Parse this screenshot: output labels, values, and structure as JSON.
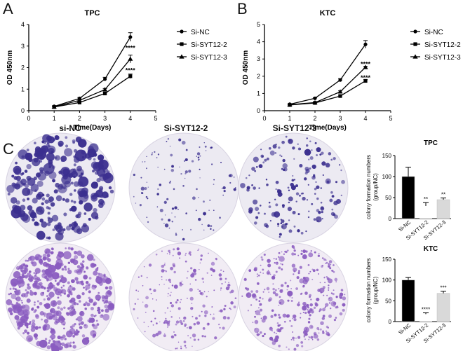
{
  "panels": {
    "a": "A",
    "b": "B",
    "c": "C"
  },
  "plates": {
    "columns": [
      "si-NC",
      "Si-SYT12-2",
      "Si-SYT12-3"
    ],
    "rows": [
      "TPC",
      "KTC"
    ]
  },
  "colors": {
    "plate_stain_row1": "#3b2f8f",
    "plate_stain_row2": "#8a5cc0",
    "bar_nc": "#000000",
    "bar_syt12_2": "#ffffff",
    "bar_syt12_3": "#d9d9d9"
  },
  "chart_data": [
    {
      "type": "line",
      "title": "TPC",
      "xlabel": "Time(Days)",
      "ylabel": "OD 450nm",
      "xlim": [
        0,
        5
      ],
      "ylim": [
        0,
        4
      ],
      "xticks": [
        "0",
        "1",
        "2",
        "3",
        "4",
        "5"
      ],
      "yticks": [
        "0",
        "1",
        "2",
        "3",
        "4"
      ],
      "x": [
        1,
        2,
        3,
        4
      ],
      "legend": "right",
      "series": [
        {
          "name": "Si-NC",
          "marker": "circle",
          "values": [
            0.2,
            0.57,
            1.47,
            3.42
          ],
          "err": [
            0.03,
            0.04,
            0.08,
            0.2
          ]
        },
        {
          "name": "Si-SYT12-2",
          "marker": "square",
          "values": [
            0.17,
            0.38,
            0.8,
            1.6
          ],
          "err": [
            0.02,
            0.03,
            0.05,
            0.1
          ]
        },
        {
          "name": "Si-SYT12-3",
          "marker": "triangle",
          "values": [
            0.18,
            0.48,
            0.98,
            2.4
          ],
          "err": [
            0.02,
            0.03,
            0.05,
            0.18
          ]
        }
      ],
      "annotations": [
        {
          "text": "****",
          "x": 4,
          "y": 2.95
        },
        {
          "text": "****",
          "x": 4,
          "y": 1.9
        }
      ]
    },
    {
      "type": "line",
      "title": "KTC",
      "xlabel": "Time(Days)",
      "ylabel": "OD 450nm",
      "xlim": [
        0,
        5
      ],
      "ylim": [
        0,
        5
      ],
      "xticks": [
        "0",
        "1",
        "2",
        "3",
        "4",
        "5"
      ],
      "yticks": [
        "0",
        "1",
        "2",
        "3",
        "4",
        "5"
      ],
      "x": [
        1,
        2,
        3,
        4
      ],
      "legend": "right",
      "series": [
        {
          "name": "Si-NC",
          "marker": "circle",
          "values": [
            0.37,
            0.72,
            1.78,
            3.85
          ],
          "err": [
            0.03,
            0.04,
            0.08,
            0.22
          ]
        },
        {
          "name": "Si-SYT12-2",
          "marker": "square",
          "values": [
            0.33,
            0.45,
            0.85,
            1.73
          ],
          "err": [
            0.02,
            0.03,
            0.05,
            0.07
          ]
        },
        {
          "name": "Si-SYT12-3",
          "marker": "triangle",
          "values": [
            0.35,
            0.47,
            1.1,
            2.52
          ],
          "err": [
            0.02,
            0.03,
            0.05,
            0.06
          ]
        }
      ],
      "annotations": [
        {
          "text": "****",
          "x": 4,
          "y": 2.75
        },
        {
          "text": "****",
          "x": 4,
          "y": 1.95
        }
      ]
    },
    {
      "type": "bar",
      "title": "TPC",
      "ylabel": "colony formation numbers (group/NC)",
      "ylim": [
        0,
        150
      ],
      "yticks": [
        "0",
        "50",
        "100",
        "150"
      ],
      "categories": [
        "Si-NC",
        "Si-SYT12-2",
        "Si-SYT12-3"
      ],
      "values": [
        100,
        30,
        45
      ],
      "err": [
        22,
        8,
        4
      ],
      "labels": [
        "",
        "**",
        "**"
      ]
    },
    {
      "type": "bar",
      "title": "KTC",
      "ylabel": "colony formation numbers (group/NC)",
      "ylim": [
        0,
        150
      ],
      "yticks": [
        "0",
        "50",
        "100",
        "150"
      ],
      "categories": [
        "Si-NC",
        "Si-SYT12-2",
        "Si-SYT12-3"
      ],
      "values": [
        100,
        18,
        68
      ],
      "err": [
        6,
        3,
        5
      ],
      "labels": [
        "",
        "****",
        "***"
      ]
    }
  ]
}
